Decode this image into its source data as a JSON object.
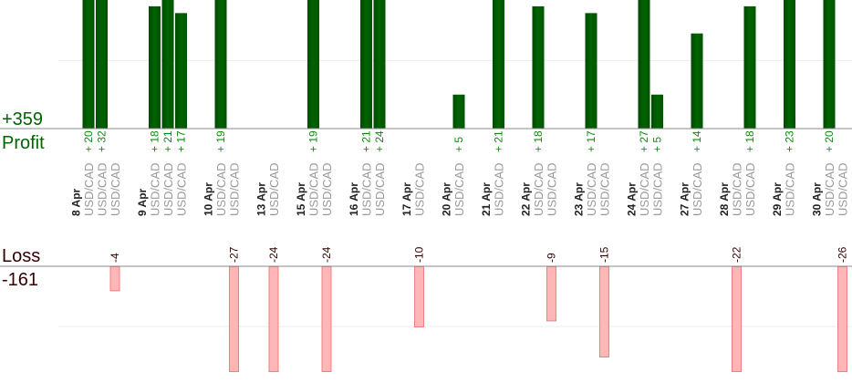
{
  "summary": {
    "profit_total": "+359",
    "profit_label": "Profit",
    "loss_label": "Loss",
    "loss_total": "-161"
  },
  "colors": {
    "profit": "#006400",
    "profit_text": "#118811",
    "loss_fill": "#ffb6b6",
    "loss_stroke": "#f08080",
    "loss_text": "#330000",
    "axis": "#888888",
    "grid": "#eeeeee"
  },
  "chart_data": {
    "type": "bar",
    "layout": "profit bars above, loss bars below, grouped by day",
    "grid": true,
    "gridline_value": 10,
    "days": [
      {
        "date": "8 Apr",
        "trades": [
          {
            "symbol": "USD/CAD",
            "value": 20
          },
          {
            "symbol": "USD/CAD",
            "value": 32
          },
          {
            "symbol": "USD/CAD",
            "value": -4
          }
        ]
      },
      {
        "date": "9 Apr",
        "trades": [
          {
            "symbol": "USD/CAD",
            "value": 18
          },
          {
            "symbol": "USD/CAD",
            "value": 21
          },
          {
            "symbol": "USD/CAD",
            "value": 17
          }
        ]
      },
      {
        "date": "10 Apr",
        "trades": [
          {
            "symbol": "USD/CAD",
            "value": 19
          },
          {
            "symbol": "USD/CAD",
            "value": -27
          }
        ]
      },
      {
        "date": "13 Apr",
        "trades": [
          {
            "symbol": "USD/CAD",
            "value": -24
          }
        ]
      },
      {
        "date": "15 Apr",
        "trades": [
          {
            "symbol": "USD/CAD",
            "value": 19
          },
          {
            "symbol": "USD/CAD",
            "value": -24
          }
        ]
      },
      {
        "date": "16 Apr",
        "trades": [
          {
            "symbol": "USD/CAD",
            "value": 21
          },
          {
            "symbol": "USD/CAD",
            "value": 24
          }
        ]
      },
      {
        "date": "17 Apr",
        "trades": [
          {
            "symbol": "USD/CAD",
            "value": -10
          }
        ]
      },
      {
        "date": "20 Apr",
        "trades": [
          {
            "symbol": "USD/CAD",
            "value": 5
          }
        ]
      },
      {
        "date": "21 Apr",
        "trades": [
          {
            "symbol": "USD/CAD",
            "value": 21
          }
        ]
      },
      {
        "date": "22 Apr",
        "trades": [
          {
            "symbol": "USD/CAD",
            "value": 18
          },
          {
            "symbol": "USD/CAD",
            "value": -9
          }
        ]
      },
      {
        "date": "23 Apr",
        "trades": [
          {
            "symbol": "USD/CAD",
            "value": 17
          },
          {
            "symbol": "USD/CAD",
            "value": -15
          }
        ]
      },
      {
        "date": "24 Apr",
        "trades": [
          {
            "symbol": "USD/CAD",
            "value": 27
          },
          {
            "symbol": "USD/CAD",
            "value": 5
          }
        ]
      },
      {
        "date": "27 Apr",
        "trades": [
          {
            "symbol": "USD/CAD",
            "value": 14
          }
        ]
      },
      {
        "date": "28 Apr",
        "trades": [
          {
            "symbol": "USD/CAD",
            "value": -22
          },
          {
            "symbol": "USD/CAD",
            "value": 18
          }
        ]
      },
      {
        "date": "29 Apr",
        "trades": [
          {
            "symbol": "USD/CAD",
            "value": 23
          }
        ]
      },
      {
        "date": "30 Apr",
        "trades": [
          {
            "symbol": "USD/CAD",
            "value": 20
          },
          {
            "symbol": "USD/CAD",
            "value": -26
          }
        ]
      }
    ]
  }
}
